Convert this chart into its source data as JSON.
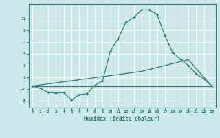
{
  "xlabel": "Humidex (Indice chaleur)",
  "bg_color": "#cce8e8",
  "grid_color": "#ffffff",
  "line_color": "#2d7d7d",
  "xlim": [
    -0.5,
    23.5
  ],
  "ylim": [
    -4.2,
    13.5
  ],
  "yticks": [
    -3,
    -1,
    1,
    3,
    5,
    7,
    9,
    11
  ],
  "xticks": [
    0,
    1,
    2,
    3,
    4,
    5,
    6,
    7,
    8,
    9,
    10,
    11,
    12,
    13,
    14,
    15,
    16,
    17,
    18,
    19,
    20,
    21,
    22,
    23
  ],
  "series1_x": [
    0,
    1,
    2,
    3,
    4,
    5,
    6,
    7,
    8,
    9,
    10,
    11,
    12,
    13,
    14,
    15,
    16,
    17,
    18,
    19,
    20,
    21,
    22,
    23
  ],
  "series1_y": [
    -0.5,
    -0.9,
    -1.6,
    -1.7,
    -1.6,
    -2.9,
    -2.0,
    -1.8,
    -0.4,
    0.4,
    5.5,
    7.6,
    10.4,
    11.2,
    12.5,
    12.5,
    11.7,
    8.1,
    5.2,
    4.1,
    3.0,
    1.6,
    0.7,
    -0.5
  ],
  "series2_x": [
    0,
    23
  ],
  "series2_y": [
    -0.5,
    -0.5
  ],
  "series3_x": [
    0,
    14,
    20,
    23
  ],
  "series3_y": [
    -0.5,
    2.0,
    4.0,
    -0.5
  ]
}
